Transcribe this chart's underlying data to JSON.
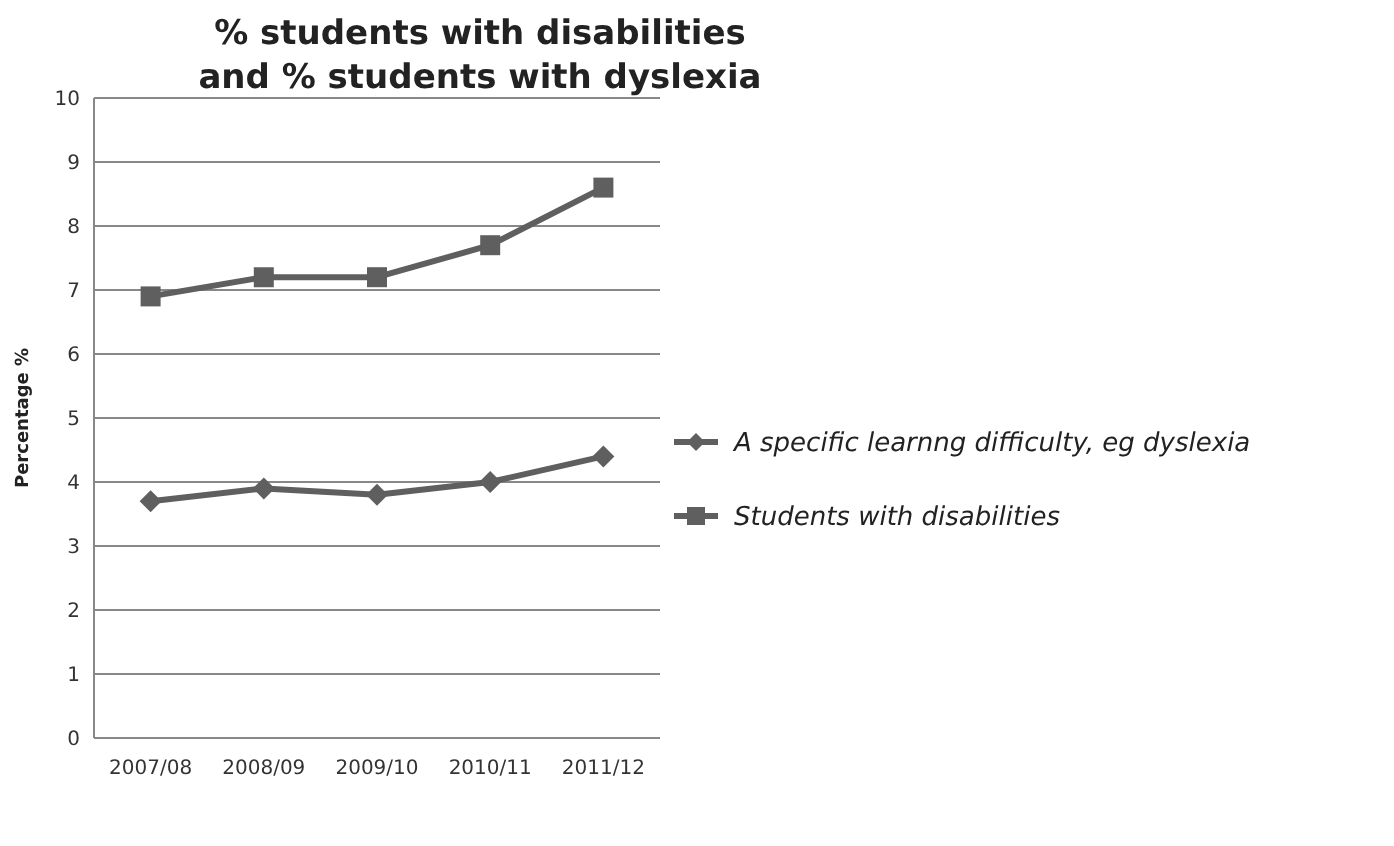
{
  "chart_data": {
    "type": "line",
    "title": "% students with disabilities\nand % students with dyslexia",
    "ylabel": "Percentage %",
    "categories": [
      "2007/08",
      "2008/09",
      "2009/10",
      "2010/11",
      "2011/12"
    ],
    "series": [
      {
        "name": "A specific learnng difficulty, eg dyslexia",
        "color": "#5f5f5f",
        "marker": "diamond",
        "values": [
          3.7,
          3.9,
          3.8,
          4.0,
          4.4
        ]
      },
      {
        "name": "Students with disabilities",
        "color": "#5f5f5f",
        "marker": "square",
        "values": [
          6.9,
          7.2,
          7.2,
          7.7,
          8.6
        ]
      }
    ],
    "ylim": [
      0,
      10
    ],
    "yticks": [
      0,
      1,
      2,
      3,
      4,
      5,
      6,
      7,
      8,
      9,
      10
    ],
    "grid": "y",
    "legend": "right",
    "line_style": "solid"
  }
}
